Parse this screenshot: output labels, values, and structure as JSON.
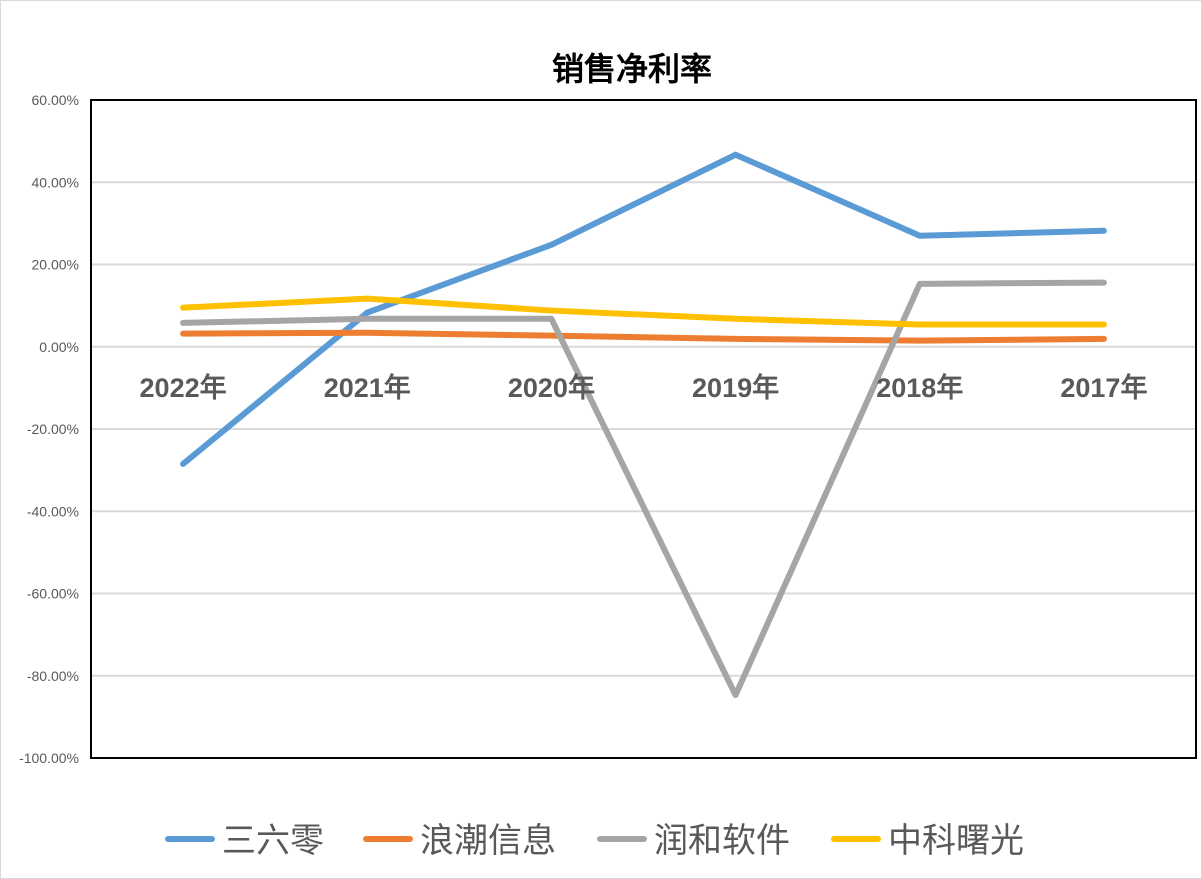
{
  "chart_data": {
    "type": "line",
    "title": "销售净利率",
    "categories": [
      "2022年",
      "2021年",
      "2020年",
      "2019年",
      "2018年",
      "2017年"
    ],
    "ylim": [
      -1.0,
      0.6
    ],
    "yticks": [
      0.6,
      0.4,
      0.2,
      0.0,
      -0.2,
      -0.4,
      -0.6,
      -0.8,
      -1.0
    ],
    "ytick_labels": [
      "60.00%",
      "40.00%",
      "20.00%",
      "0.00%",
      "-20.00%",
      "-40.00%",
      "-60.00%",
      "-80.00%",
      "-100.00%"
    ],
    "grid": true,
    "legend_position": "bottom",
    "series": [
      {
        "name": "三六零",
        "color": "#5b9bd5",
        "values": [
          -0.285,
          0.083,
          0.248,
          0.467,
          0.27,
          0.282
        ]
      },
      {
        "name": "浪潮信息",
        "color": "#ed7d31",
        "values": [
          0.032,
          0.034,
          0.027,
          0.019,
          0.015,
          0.019
        ]
      },
      {
        "name": "润和软件",
        "color": "#a5a5a5",
        "values": [
          0.058,
          0.068,
          0.068,
          -0.847,
          0.153,
          0.156
        ]
      },
      {
        "name": "中科曙光",
        "color": "#ffc000",
        "values": [
          0.095,
          0.117,
          0.088,
          0.068,
          0.054,
          0.054
        ]
      }
    ]
  }
}
